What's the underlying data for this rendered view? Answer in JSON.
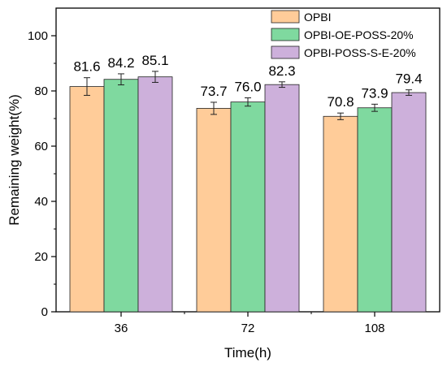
{
  "chart_data": {
    "type": "bar",
    "xlabel": "Time(h)",
    "ylabel": "Remaining weight(%)",
    "ylim": [
      0,
      110
    ],
    "yticks": [
      "0",
      "20",
      "40",
      "60",
      "80",
      "100"
    ],
    "categories": [
      "36",
      "72",
      "108"
    ],
    "legend_position": "top-right",
    "series": [
      {
        "name": "OPBI",
        "color": "#FFCC99",
        "values": [
          81.6,
          73.7,
          70.8
        ],
        "errors": [
          3.2,
          2.2,
          1.2
        ],
        "labels": [
          "81.6",
          "73.7",
          "70.8"
        ]
      },
      {
        "name": "OPBI-OE-POSS-20%",
        "color": "#7FD99F",
        "values": [
          84.2,
          76.0,
          73.9
        ],
        "errors": [
          2.0,
          1.5,
          1.3
        ],
        "labels": [
          "84.2",
          "76.0",
          "73.9"
        ]
      },
      {
        "name": "OPBI-POSS-S-E-20%",
        "color": "#CDB0DB",
        "values": [
          85.1,
          82.3,
          79.4
        ],
        "errors": [
          2.0,
          1.0,
          1.0
        ],
        "labels": [
          "85.1",
          "82.3",
          "79.4"
        ]
      }
    ]
  }
}
